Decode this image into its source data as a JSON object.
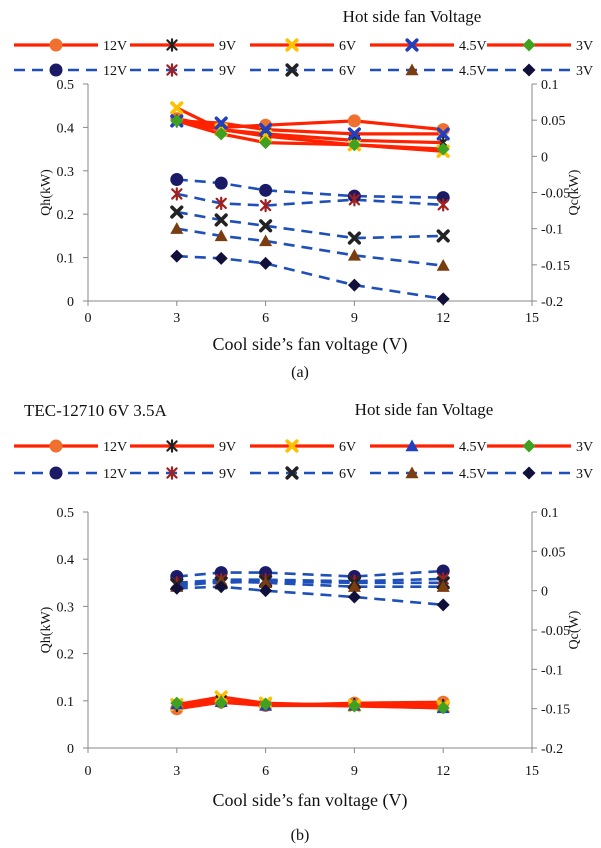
{
  "chart_data": [
    {
      "type": "line",
      "panel_label": "(a)",
      "legend_title": "Hot side fan Voltage",
      "xlabel": "Cool side’s fan voltage (V)",
      "ylabel_left": "Qh(kW)",
      "ylabel_right": "Qc(kW)",
      "xlim": [
        0,
        15
      ],
      "ylim_left": [
        0,
        0.5
      ],
      "ylim_right": [
        -0.2,
        0.1
      ],
      "x_ticks": [
        "0",
        "3",
        "6",
        "9",
        "12",
        "15"
      ],
      "y_ticks_left": [
        "0",
        "0.1",
        "0.2",
        "0.3",
        "0.4",
        "0.5"
      ],
      "y_ticks_right": [
        "-0.2",
        "-0.15",
        "-0.1",
        "-0.05",
        "0",
        "0.05",
        "0.1"
      ],
      "grid": false,
      "legend_position": "top",
      "x": [
        3,
        4.5,
        6,
        9,
        12
      ],
      "series": [
        {
          "name": "12V",
          "axis": "left",
          "style": "solid",
          "color": "#ff2200",
          "marker": "circle",
          "marker_color": "#f07030",
          "values": [
            0.42,
            0.4,
            0.405,
            0.415,
            0.395
          ]
        },
        {
          "name": "9V",
          "axis": "left",
          "style": "solid",
          "color": "#ff2200",
          "marker": "star",
          "marker_color": "#222222",
          "values": [
            0.415,
            0.395,
            0.385,
            0.37,
            0.365
          ]
        },
        {
          "name": "6V",
          "axis": "left",
          "style": "solid",
          "color": "#ff2200",
          "marker": "x",
          "marker_color": "#ffc000",
          "values": [
            0.445,
            0.395,
            0.38,
            0.36,
            0.345
          ]
        },
        {
          "name": "4.5V",
          "axis": "left",
          "style": "solid",
          "color": "#ff2200",
          "marker": "x",
          "marker_color": "#2040c0",
          "values": [
            0.415,
            0.41,
            0.395,
            0.385,
            0.385
          ]
        },
        {
          "name": "3V",
          "axis": "left",
          "style": "solid",
          "color": "#ff2200",
          "marker": "diamond",
          "marker_color": "#40a020",
          "values": [
            0.415,
            0.385,
            0.365,
            0.36,
            0.35
          ]
        },
        {
          "name": "12V",
          "axis": "right",
          "style": "dashed",
          "color": "#1f4fb8",
          "marker": "circle",
          "marker_color": "#1a1a66",
          "values": [
            -0.032,
            -0.037,
            -0.047,
            -0.055,
            -0.057
          ]
        },
        {
          "name": "9V",
          "axis": "right",
          "style": "dashed",
          "color": "#1f4fb8",
          "marker": "star",
          "marker_color": "#a02020",
          "values": [
            -0.052,
            -0.065,
            -0.068,
            -0.06,
            -0.067
          ]
        },
        {
          "name": "6V",
          "axis": "right",
          "style": "dashed",
          "color": "#1f4fb8",
          "marker": "x",
          "marker_color": "#222222",
          "values": [
            -0.077,
            -0.088,
            -0.096,
            -0.113,
            -0.11
          ]
        },
        {
          "name": "4.5V",
          "axis": "right",
          "style": "dashed",
          "color": "#1f4fb8",
          "marker": "triangle",
          "marker_color": "#7a3d10",
          "values": [
            -0.1,
            -0.11,
            -0.117,
            -0.137,
            -0.151
          ]
        },
        {
          "name": "3V",
          "axis": "right",
          "style": "dashed",
          "color": "#1f4fb8",
          "marker": "diamond",
          "marker_color": "#10103a",
          "values": [
            -0.138,
            -0.141,
            -0.148,
            -0.178,
            -0.197
          ]
        }
      ]
    },
    {
      "type": "line",
      "panel_label": "(b)",
      "title": "TEC-12710 6V 3.5A",
      "legend_title": "Hot side fan Voltage",
      "xlabel": "Cool side’s fan voltage (V)",
      "ylabel_left": "Qh(kW)",
      "ylabel_right": "Qc(W)",
      "xlim": [
        0,
        15
      ],
      "ylim_left": [
        0,
        0.5
      ],
      "ylim_right": [
        -0.2,
        0.1
      ],
      "x_ticks": [
        "0",
        "3",
        "6",
        "9",
        "12",
        "15"
      ],
      "y_ticks_left": [
        "0",
        "0.1",
        "0.2",
        "0.3",
        "0.4",
        "0.5"
      ],
      "y_ticks_right": [
        "-0.2",
        "-0.15",
        "-0.1",
        "-0.05",
        "0",
        "0.05",
        "0.1"
      ],
      "grid": false,
      "legend_position": "top",
      "x": [
        3,
        4.5,
        6,
        9,
        12
      ],
      "series": [
        {
          "name": "12V",
          "axis": "left",
          "style": "solid",
          "color": "#ff2200",
          "marker": "circle",
          "marker_color": "#f07030",
          "values": [
            0.083,
            0.097,
            0.09,
            0.095,
            0.097
          ]
        },
        {
          "name": "9V",
          "axis": "left",
          "style": "solid",
          "color": "#ff2200",
          "marker": "star",
          "marker_color": "#222222",
          "values": [
            0.09,
            0.1,
            0.092,
            0.092,
            0.09
          ]
        },
        {
          "name": "6V",
          "axis": "left",
          "style": "solid",
          "color": "#ff2200",
          "marker": "x",
          "marker_color": "#ffc000",
          "values": [
            0.092,
            0.108,
            0.095,
            0.09,
            0.088
          ]
        },
        {
          "name": "4.5V",
          "axis": "left",
          "style": "solid",
          "color": "#ff2200",
          "marker": "triangle",
          "marker_color": "#2040c0",
          "values": [
            0.093,
            0.098,
            0.09,
            0.09,
            0.085
          ]
        },
        {
          "name": "3V",
          "axis": "left",
          "style": "solid",
          "color": "#ff2200",
          "marker": "diamond",
          "marker_color": "#40a020",
          "values": [
            0.095,
            0.096,
            0.093,
            0.089,
            0.085
          ]
        },
        {
          "name": "12V",
          "axis": "right",
          "style": "dashed",
          "color": "#1f4fb8",
          "marker": "circle",
          "marker_color": "#1a1a66",
          "values": [
            0.018,
            0.023,
            0.023,
            0.018,
            0.025
          ]
        },
        {
          "name": "9V",
          "axis": "right",
          "style": "dashed",
          "color": "#1f4fb8",
          "marker": "star",
          "marker_color": "#a02020",
          "values": [
            0.01,
            0.014,
            0.014,
            0.012,
            0.015
          ]
        },
        {
          "name": "6V",
          "axis": "right",
          "style": "dashed",
          "color": "#1f4fb8",
          "marker": "x",
          "marker_color": "#222222",
          "values": [
            0.008,
            0.01,
            0.012,
            0.01,
            0.01
          ]
        },
        {
          "name": "4.5V",
          "axis": "right",
          "style": "dashed",
          "color": "#1f4fb8",
          "marker": "triangle",
          "marker_color": "#7a3d10",
          "values": [
            0.005,
            0.012,
            0.01,
            0.005,
            0.005
          ]
        },
        {
          "name": "3V",
          "axis": "right",
          "style": "dashed",
          "color": "#1f4fb8",
          "marker": "diamond",
          "marker_color": "#10103a",
          "values": [
            0.003,
            0.005,
            0.0,
            -0.008,
            -0.018
          ]
        }
      ]
    }
  ]
}
